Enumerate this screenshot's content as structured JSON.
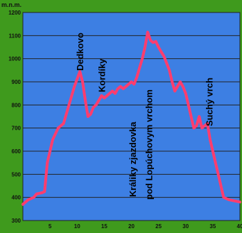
{
  "chart_data": {
    "type": "line",
    "unit_label": "m.n.m.",
    "ylim": [
      300,
      1200
    ],
    "xlim": [
      0,
      40
    ],
    "y_ticks": [
      300,
      400,
      500,
      600,
      700,
      800,
      900,
      1000,
      1100,
      1200
    ],
    "x_ticks": [
      5,
      10,
      15,
      20,
      25,
      30,
      35,
      40
    ],
    "x_tick_labels": [
      "5",
      "10",
      "15",
      "20",
      "25",
      "30",
      "35",
      "40"
    ],
    "grid": true,
    "colors": {
      "line": "#ff3d6e",
      "plot_background": "#3d7fe3",
      "page_background": "#3f9a1d",
      "grid": "#222222"
    },
    "series": [
      {
        "x": [
          0,
          1.0,
          2.0,
          2.5,
          3.5,
          4.0,
          4.5,
          5.5,
          6.5,
          7.5,
          8.5,
          9.5,
          10.5,
          11.0,
          11.5,
          12.0,
          12.5,
          13.0,
          13.5,
          14.0,
          14.5,
          15.0,
          15.5,
          16.0,
          16.5,
          17.0,
          17.5,
          18.0,
          18.5,
          19.0,
          20.0,
          20.5,
          21.0,
          21.5,
          22.0,
          22.5,
          23.0,
          23.5,
          24.0,
          24.5,
          25.0,
          25.5,
          26.0,
          26.5,
          27.0,
          27.5,
          28.0,
          28.5,
          29.0,
          29.5,
          30.0,
          30.5,
          31.0,
          31.5,
          32.0,
          32.5,
          33.0,
          33.5,
          34.0,
          34.5,
          35.0,
          35.5,
          36.0,
          36.5,
          37.0,
          38.0,
          39.0,
          40.0
        ],
        "y": [
          370,
          390,
          400,
          415,
          420,
          425,
          550,
          650,
          700,
          720,
          800,
          880,
          945,
          900,
          820,
          750,
          760,
          790,
          800,
          820,
          840,
          830,
          840,
          850,
          860,
          850,
          870,
          880,
          870,
          880,
          900,
          890,
          920,
          960,
          1000,
          1050,
          1115,
          1080,
          1070,
          1075,
          1050,
          1030,
          1010,
          980,
          950,
          900,
          860,
          880,
          900,
          880,
          850,
          800,
          750,
          700,
          710,
          750,
          700,
          710,
          720,
          650,
          600,
          550,
          500,
          450,
          400,
          390,
          385,
          380
        ]
      }
    ],
    "annotations": [
      {
        "text": "Dedkovo",
        "x": 10.5
      },
      {
        "text": "Kordíky",
        "x": 14.5
      },
      {
        "text": "Králiky zjazdovka",
        "x": 20.2
      },
      {
        "text": "pod Lopúchovym vrchom",
        "x": 23.2
      },
      {
        "text": "Suchý vrch",
        "x": 34.3
      }
    ]
  }
}
